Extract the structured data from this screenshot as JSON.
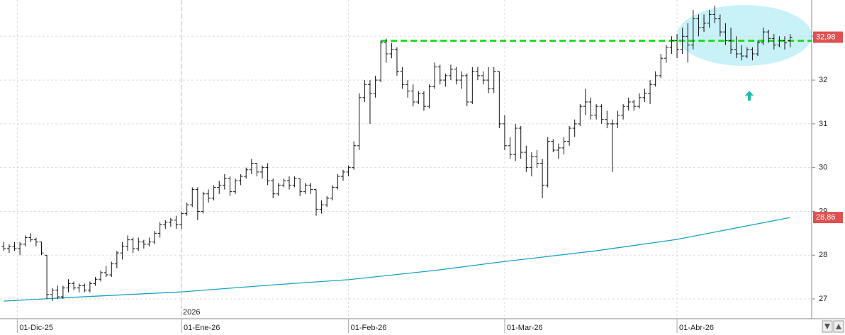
{
  "chart_data": {
    "type": "ohlc",
    "xlim": [
      -0.7,
      150
    ],
    "ylim": [
      26.58,
      33.83
    ],
    "yticks": [
      27,
      28,
      29,
      30,
      31,
      32,
      33
    ],
    "xticks": [
      {
        "value": 2.5,
        "label": "01-Dic-25"
      },
      {
        "value": 33,
        "label": "01-Ene-26"
      },
      {
        "value": 64,
        "label": "01-Feb-26"
      },
      {
        "value": 93,
        "label": "01-Mar-26"
      },
      {
        "value": 125,
        "label": "01-Abr-26"
      }
    ],
    "year_label": {
      "value": 33,
      "label": "2026"
    },
    "grid": true,
    "bar_color": "#111111",
    "bars": [
      [
        28.2,
        28.3,
        28.1,
        28.15
      ],
      [
        28.15,
        28.25,
        28.05,
        28.2
      ],
      [
        28.2,
        28.3,
        28.1,
        28.15
      ],
      [
        28.15,
        28.3,
        28.0,
        28.25
      ],
      [
        28.25,
        28.45,
        28.2,
        28.4
      ],
      [
        28.4,
        28.5,
        28.3,
        28.35
      ],
      [
        28.35,
        28.4,
        28.2,
        28.3
      ],
      [
        28.3,
        28.3,
        28.0,
        28.05
      ],
      [
        28.0,
        28.0,
        27.0,
        27.1
      ],
      [
        27.1,
        27.25,
        26.95,
        27.2
      ],
      [
        27.2,
        27.3,
        27.0,
        27.05
      ],
      [
        27.05,
        27.3,
        27.0,
        27.25
      ],
      [
        27.25,
        27.45,
        27.15,
        27.35
      ],
      [
        27.35,
        27.4,
        27.2,
        27.25
      ],
      [
        27.25,
        27.35,
        27.15,
        27.3
      ],
      [
        27.3,
        27.35,
        27.15,
        27.2
      ],
      [
        27.2,
        27.4,
        27.15,
        27.35
      ],
      [
        27.35,
        27.5,
        27.3,
        27.45
      ],
      [
        27.45,
        27.65,
        27.4,
        27.6
      ],
      [
        27.6,
        27.75,
        27.5,
        27.55
      ],
      [
        27.55,
        27.85,
        27.5,
        27.8
      ],
      [
        27.8,
        28.1,
        27.7,
        28.05
      ],
      [
        28.05,
        28.3,
        27.9,
        28.2
      ],
      [
        28.2,
        28.45,
        28.1,
        28.35
      ],
      [
        28.35,
        28.4,
        28.05,
        28.15
      ],
      [
        28.15,
        28.4,
        28.1,
        28.3
      ],
      [
        28.3,
        28.35,
        28.15,
        28.25
      ],
      [
        28.25,
        28.4,
        28.2,
        28.3
      ],
      [
        28.3,
        28.55,
        28.25,
        28.5
      ],
      [
        28.5,
        28.75,
        28.4,
        28.7
      ],
      [
        28.7,
        28.8,
        28.6,
        28.75
      ],
      [
        28.75,
        28.85,
        28.65,
        28.8
      ],
      [
        28.8,
        28.9,
        28.6,
        28.7
      ],
      [
        28.7,
        29.0,
        28.6,
        28.95
      ],
      [
        28.95,
        29.2,
        28.9,
        29.15
      ],
      [
        29.15,
        29.55,
        29.1,
        29.5
      ],
      [
        29.5,
        29.55,
        28.8,
        29.0
      ],
      [
        29.0,
        29.45,
        28.95,
        29.4
      ],
      [
        29.4,
        29.5,
        29.2,
        29.3
      ],
      [
        29.3,
        29.6,
        29.25,
        29.55
      ],
      [
        29.55,
        29.7,
        29.4,
        29.6
      ],
      [
        29.6,
        29.85,
        29.5,
        29.75
      ],
      [
        29.75,
        29.8,
        29.35,
        29.45
      ],
      [
        29.45,
        29.75,
        29.4,
        29.7
      ],
      [
        29.7,
        29.85,
        29.6,
        29.8
      ],
      [
        29.8,
        30.0,
        29.75,
        29.95
      ],
      [
        29.95,
        30.2,
        29.85,
        30.1
      ],
      [
        30.1,
        30.1,
        29.8,
        29.9
      ],
      [
        29.9,
        30.05,
        29.75,
        30.0
      ],
      [
        30.0,
        30.1,
        29.6,
        29.7
      ],
      [
        29.7,
        29.75,
        29.3,
        29.4
      ],
      [
        29.4,
        29.65,
        29.35,
        29.6
      ],
      [
        29.6,
        29.75,
        29.55,
        29.7
      ],
      [
        29.7,
        29.8,
        29.5,
        29.6
      ],
      [
        29.6,
        29.8,
        29.55,
        29.75
      ],
      [
        29.75,
        29.75,
        29.35,
        29.45
      ],
      [
        29.45,
        29.65,
        29.4,
        29.6
      ],
      [
        29.6,
        29.65,
        29.4,
        29.5
      ],
      [
        29.5,
        29.5,
        28.9,
        29.05
      ],
      [
        29.05,
        29.25,
        28.95,
        29.15
      ],
      [
        29.15,
        29.35,
        29.1,
        29.3
      ],
      [
        29.3,
        29.6,
        29.25,
        29.55
      ],
      [
        29.55,
        29.85,
        29.5,
        29.8
      ],
      [
        29.8,
        29.95,
        29.7,
        29.9
      ],
      [
        29.9,
        30.05,
        29.8,
        30.0
      ],
      [
        30.0,
        30.6,
        29.95,
        30.5
      ],
      [
        30.5,
        31.7,
        30.4,
        31.6
      ],
      [
        31.6,
        32.0,
        31.5,
        31.9
      ],
      [
        31.9,
        32.0,
        31.0,
        31.7
      ],
      [
        31.7,
        32.1,
        31.6,
        32.0
      ],
      [
        32.0,
        32.9,
        31.95,
        32.85
      ],
      [
        32.85,
        32.95,
        32.4,
        32.6
      ],
      [
        32.6,
        32.85,
        32.5,
        32.7
      ],
      [
        32.7,
        32.75,
        32.1,
        32.2
      ],
      [
        32.2,
        32.3,
        31.8,
        31.9
      ],
      [
        31.9,
        32.0,
        31.6,
        31.75
      ],
      [
        31.75,
        31.9,
        31.4,
        31.5
      ],
      [
        31.5,
        31.75,
        31.45,
        31.7
      ],
      [
        31.7,
        31.75,
        31.3,
        31.4
      ],
      [
        31.4,
        31.9,
        31.35,
        31.85
      ],
      [
        31.85,
        32.4,
        31.8,
        32.3
      ],
      [
        32.3,
        32.35,
        31.9,
        32.0
      ],
      [
        32.0,
        32.15,
        31.85,
        32.1
      ],
      [
        32.1,
        32.35,
        32.0,
        32.25
      ],
      [
        32.25,
        32.3,
        31.9,
        32.0
      ],
      [
        32.0,
        32.2,
        31.8,
        32.1
      ],
      [
        32.1,
        32.15,
        31.4,
        31.5
      ],
      [
        31.5,
        32.3,
        31.45,
        32.2
      ],
      [
        32.2,
        32.3,
        32.0,
        32.1
      ],
      [
        32.1,
        32.2,
        31.9,
        32.0
      ],
      [
        32.0,
        32.3,
        31.7,
        31.8
      ],
      [
        31.8,
        32.3,
        31.7,
        32.2
      ],
      [
        32.2,
        32.2,
        30.9,
        31.0
      ],
      [
        31.0,
        31.2,
        30.4,
        30.5
      ],
      [
        30.5,
        30.7,
        30.2,
        30.3
      ],
      [
        30.3,
        31.0,
        30.15,
        30.9
      ],
      [
        30.9,
        30.95,
        30.2,
        30.35
      ],
      [
        30.35,
        30.5,
        29.9,
        30.0
      ],
      [
        30.0,
        30.35,
        29.8,
        30.25
      ],
      [
        30.25,
        30.4,
        30.0,
        30.1
      ],
      [
        30.1,
        30.2,
        29.3,
        29.6
      ],
      [
        29.6,
        30.7,
        29.55,
        30.6
      ],
      [
        30.6,
        30.65,
        30.35,
        30.4
      ],
      [
        30.4,
        30.55,
        30.2,
        30.45
      ],
      [
        30.45,
        30.7,
        30.3,
        30.6
      ],
      [
        30.6,
        30.95,
        30.5,
        30.9
      ],
      [
        30.9,
        31.1,
        30.7,
        31.0
      ],
      [
        31.0,
        31.45,
        30.95,
        31.4
      ],
      [
        31.4,
        31.8,
        31.2,
        31.5
      ],
      [
        31.5,
        31.6,
        31.1,
        31.2
      ],
      [
        31.2,
        31.45,
        31.1,
        31.4
      ],
      [
        31.4,
        31.45,
        31.0,
        31.1
      ],
      [
        31.1,
        31.3,
        30.9,
        31.0
      ],
      [
        31.0,
        31.1,
        29.9,
        31.0
      ],
      [
        31.0,
        31.3,
        30.9,
        31.2
      ],
      [
        31.2,
        31.45,
        31.1,
        31.4
      ],
      [
        31.4,
        31.6,
        31.3,
        31.5
      ],
      [
        31.5,
        31.55,
        31.3,
        31.4
      ],
      [
        31.4,
        31.7,
        31.35,
        31.6
      ],
      [
        31.6,
        31.8,
        31.5,
        31.7
      ],
      [
        31.7,
        32.0,
        31.45,
        31.9
      ],
      [
        31.9,
        32.2,
        31.85,
        32.1
      ],
      [
        32.1,
        32.6,
        32.05,
        32.5
      ],
      [
        32.5,
        32.8,
        32.4,
        32.75
      ],
      [
        32.75,
        33.0,
        32.6,
        32.9
      ],
      [
        32.9,
        33.05,
        32.5,
        32.7
      ],
      [
        32.7,
        33.2,
        32.6,
        33.0
      ],
      [
        33.0,
        33.3,
        32.4,
        32.8
      ],
      [
        32.8,
        33.6,
        32.7,
        33.4
      ],
      [
        33.4,
        33.5,
        33.0,
        33.2
      ],
      [
        33.2,
        33.5,
        33.1,
        33.3
      ],
      [
        33.3,
        33.6,
        33.2,
        33.5
      ],
      [
        33.5,
        33.7,
        33.3,
        33.4
      ],
      [
        33.4,
        33.5,
        33.0,
        33.1
      ],
      [
        33.1,
        33.3,
        32.8,
        32.9
      ],
      [
        32.9,
        33.2,
        32.6,
        32.7
      ],
      [
        32.7,
        33.0,
        32.5,
        32.6
      ],
      [
        32.6,
        32.8,
        32.45,
        32.55
      ],
      [
        32.55,
        32.75,
        32.5,
        32.7
      ],
      [
        32.7,
        32.75,
        32.45,
        32.6
      ],
      [
        32.6,
        32.9,
        32.55,
        32.85
      ],
      [
        32.85,
        33.2,
        32.8,
        33.1
      ],
      [
        33.1,
        33.15,
        32.85,
        32.95
      ],
      [
        32.95,
        33.05,
        32.7,
        32.8
      ],
      [
        32.8,
        33.0,
        32.75,
        32.9
      ],
      [
        32.9,
        33.0,
        32.7,
        32.85
      ],
      [
        32.9,
        33.05,
        32.75,
        32.98
      ]
    ],
    "moving_average": {
      "color": "#1aa3c4",
      "x": [
        0,
        15,
        33,
        50,
        64,
        80,
        92,
        110,
        125,
        146
      ],
      "values": [
        26.95,
        27.05,
        27.16,
        27.32,
        27.44,
        27.65,
        27.84,
        28.1,
        28.36,
        28.86
      ]
    },
    "resistance": {
      "value": 32.9,
      "start": 70,
      "color": "#22dd22"
    },
    "last_price": {
      "value": 32.98,
      "label": "32,98",
      "color": "#e05050"
    },
    "ma_last": {
      "value": 28.86,
      "label": "28,86",
      "color": "#e05050"
    }
  }
}
